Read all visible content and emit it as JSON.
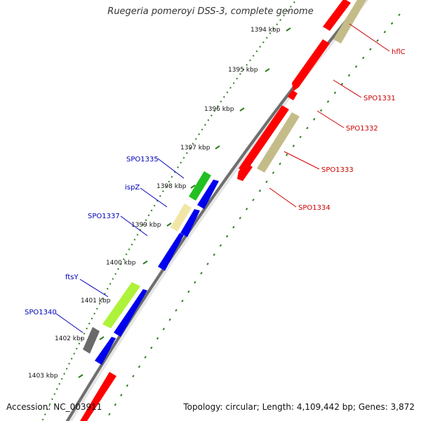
{
  "title": "Ruegeria pomeroyi DSS-3, complete genome",
  "footer": {
    "accession": "Accession: NC_003911",
    "summary": "Topology: circular; Length: 4,109,442 bp; Genes: 3,872"
  },
  "colors": {
    "backbone": "#6e6e6e",
    "ruler": "#2e7d1e",
    "forward": "#ff0000",
    "reverse": "#0000ee",
    "other": "#c4bc88",
    "label_forward": "#cc0000",
    "label_reverse": "#0000bb"
  },
  "ruler_labels": [
    "1394 kbp",
    "1395 kbp",
    "1396 kbp",
    "1397 kbp",
    "1398 kbp",
    "1399 kbp",
    "1400 kbp",
    "1401 kbp",
    "1402 kbp",
    "1403 kbp"
  ],
  "gene_labels": {
    "right": [
      "hflC",
      "SPO1331",
      "SPO1332",
      "SPO1333",
      "SPO1334"
    ],
    "left": [
      "SPO1335",
      "ispZ",
      "SPO1337",
      "ftsY",
      "SPO1340"
    ]
  }
}
